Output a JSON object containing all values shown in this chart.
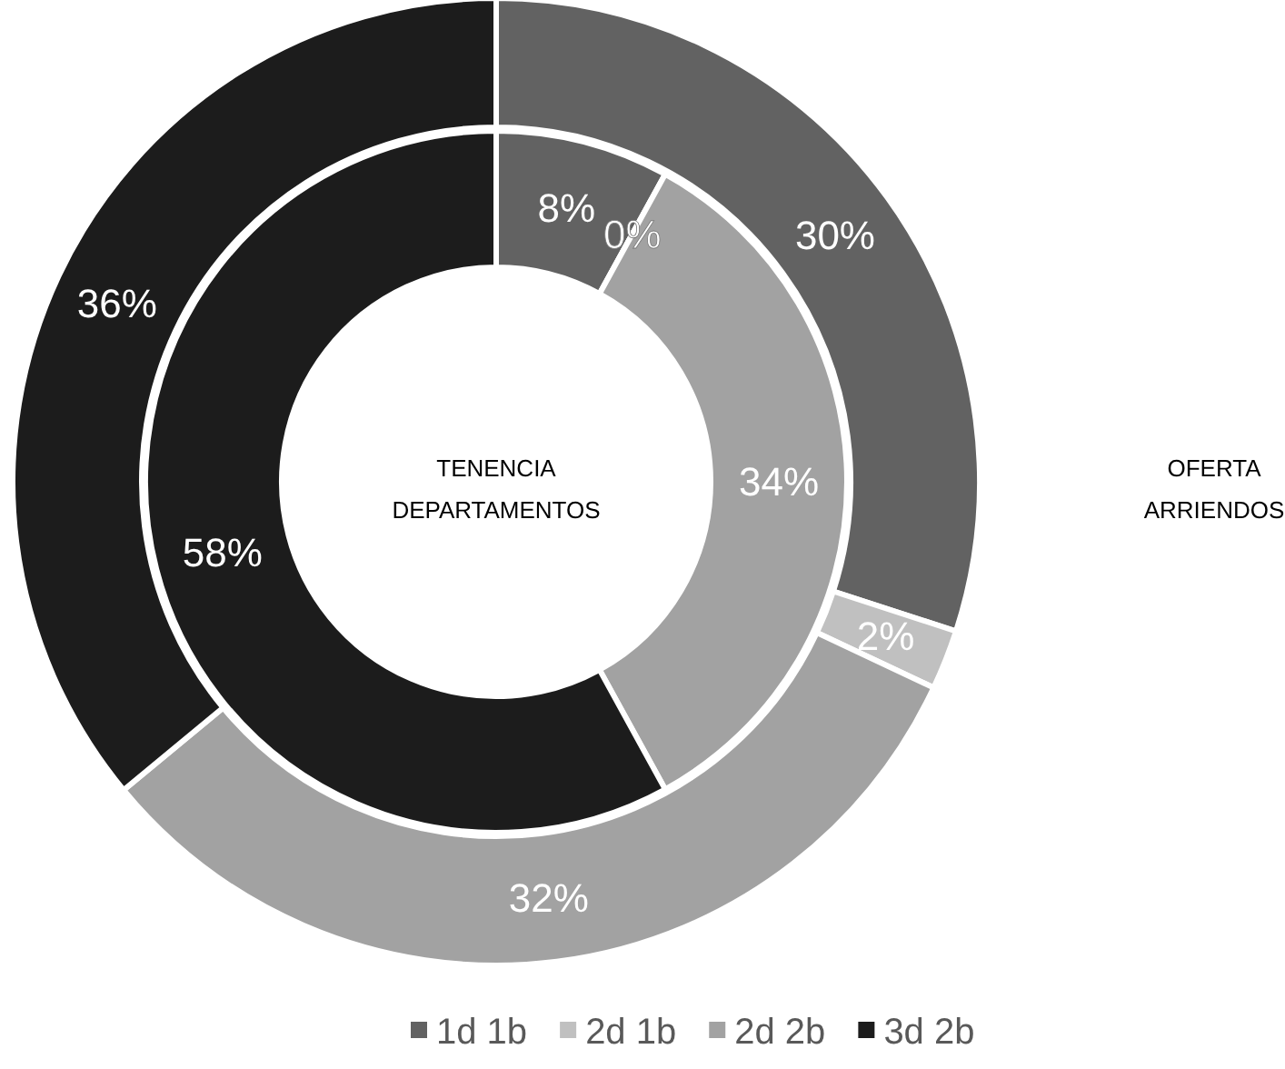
{
  "chart_data": {
    "type": "donut",
    "categories": [
      "1d 1b",
      "2d 1b",
      "2d 2b",
      "3d 2b"
    ],
    "colors": [
      "#626262",
      "#c0c0c0",
      "#a2a2a2",
      "#1c1c1c"
    ],
    "series": [
      {
        "name": "OFERTA ARRIENDOS",
        "values": [
          30,
          2,
          32,
          36
        ],
        "value_labels": [
          "30%",
          "2%",
          "32%",
          "36%"
        ]
      },
      {
        "name": "TENENCIA DEPARTAMENTOS",
        "values": [
          8,
          0,
          34,
          58
        ],
        "value_labels": [
          "8%",
          "0%",
          "34%",
          "58%"
        ]
      }
    ],
    "legend": "bottom"
  }
}
